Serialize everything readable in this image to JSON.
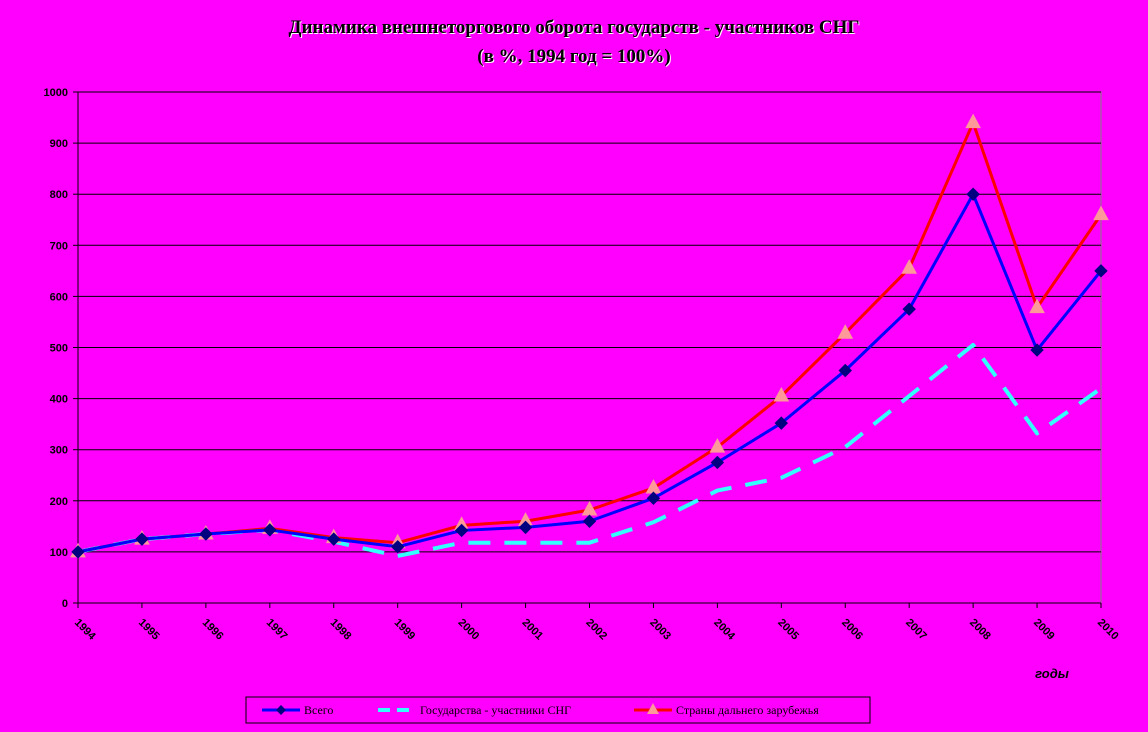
{
  "chart_data": {
    "type": "line",
    "title": "Динамика внешнеторгового оборота государств - участников СНГ",
    "subtitle": "(в %, 1994 год = 100%)",
    "xlabel": "годы",
    "ylabel": "",
    "x": [
      "1994",
      "1995",
      "1996",
      "1997",
      "1998",
      "1999",
      "2000",
      "2001",
      "2002",
      "2003",
      "2004",
      "2005",
      "2006",
      "2007",
      "2008",
      "2009",
      "2010"
    ],
    "ylim": [
      0,
      1000
    ],
    "yticks": [
      0,
      100,
      200,
      300,
      400,
      500,
      600,
      700,
      800,
      900,
      1000
    ],
    "grid": true,
    "legend_position": "bottom-center",
    "series": [
      {
        "name": "Всего",
        "color": "#0000ff",
        "marker": "diamond",
        "marker_color": "#000080",
        "dash": "solid",
        "values": [
          100,
          125,
          135,
          143,
          125,
          110,
          142,
          148,
          160,
          205,
          275,
          352,
          455,
          575,
          800,
          495,
          650
        ]
      },
      {
        "name": "Государства - участники СНГ",
        "color": "#33ffff",
        "marker": "none",
        "dash": "dashed",
        "values": [
          100,
          125,
          135,
          143,
          120,
          92,
          118,
          118,
          118,
          158,
          220,
          245,
          305,
          405,
          505,
          332,
          420
        ]
      },
      {
        "name": "Страны дальнего зарубежья",
        "color": "#ff0000",
        "marker": "triangle",
        "marker_color": "#ff9999",
        "dash": "solid",
        "values": [
          100,
          125,
          135,
          146,
          128,
          118,
          152,
          160,
          182,
          225,
          305,
          405,
          528,
          655,
          940,
          578,
          760
        ]
      }
    ]
  }
}
